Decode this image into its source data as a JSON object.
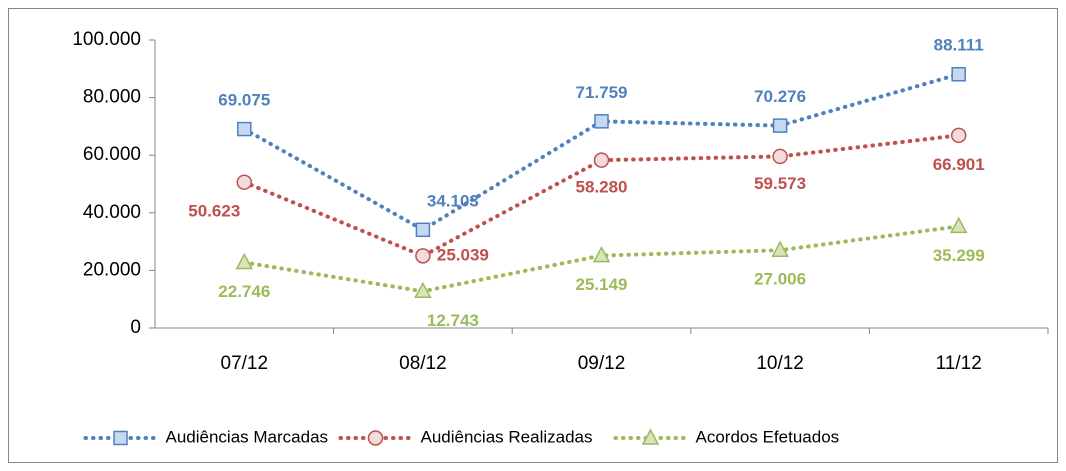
{
  "chart_data": {
    "type": "line",
    "categories": [
      "07/12",
      "08/12",
      "09/12",
      "10/12",
      "11/12"
    ],
    "series": [
      {
        "name": "Audiências Marcadas",
        "color": "#4f81bd",
        "marker_fill": "#c6d9f1",
        "marker": "square",
        "values": [
          69075,
          34103,
          71759,
          70276,
          88111
        ],
        "value_labels": [
          "69.075",
          "34.103",
          "71.759",
          "70.276",
          "88.111"
        ]
      },
      {
        "name": "Audiências Realizadas",
        "color": "#c0504d",
        "marker_fill": "#f2dcdb",
        "marker": "circle",
        "values": [
          50623,
          25039,
          58280,
          59573,
          66901
        ],
        "value_labels": [
          "50.623",
          "25.039",
          "58.280",
          "59.573",
          "66.901"
        ]
      },
      {
        "name": "Acordos Efetuados",
        "color": "#9bbb59",
        "marker_fill": "#d7e4bd",
        "marker": "triangle",
        "values": [
          22746,
          12743,
          25149,
          27006,
          35299
        ],
        "value_labels": [
          "22.746",
          "12.743",
          "25.149",
          "27.006",
          "35.299"
        ]
      }
    ],
    "ylim": [
      0,
      100000
    ],
    "yticks": [
      0,
      {
        "value": 20000,
        "label": "20.000"
      },
      {
        "value": 40000,
        "label": "40.000"
      },
      {
        "value": 60000,
        "label": "60.000"
      },
      {
        "value": 80000,
        "label": "80.000"
      },
      {
        "value": 100000,
        "label": "100.000"
      }
    ],
    "legend": "bottom"
  }
}
